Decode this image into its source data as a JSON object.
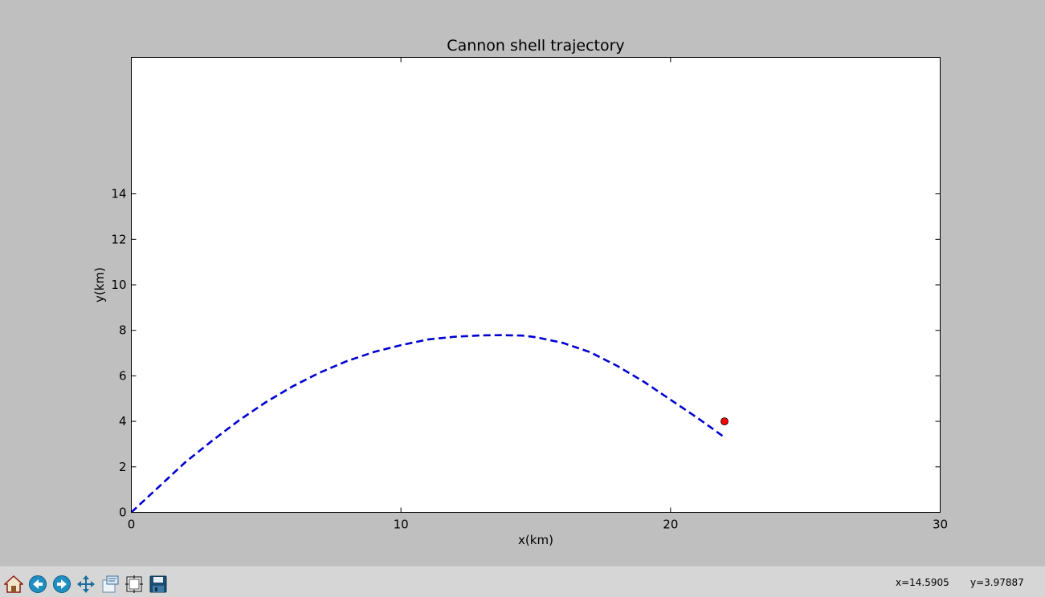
{
  "chart_data": {
    "type": "line",
    "title": "Cannon shell trajectory",
    "xlabel": "x(km)",
    "ylabel": "y(km)",
    "xlim": [
      0,
      30
    ],
    "ylim": [
      0,
      20
    ],
    "xticks": [
      0,
      10,
      20,
      30
    ],
    "yticks": [
      0,
      2,
      4,
      6,
      8,
      10,
      12,
      14
    ],
    "grid": false,
    "series": [
      {
        "style": "dashed",
        "color": "#0000d0",
        "x": [
          0,
          1,
          2,
          3,
          4,
          5,
          6,
          7,
          8,
          9,
          10,
          11,
          12,
          13,
          13.7,
          14.5,
          15,
          16,
          17,
          18,
          19,
          20,
          21,
          22
        ],
        "y": [
          0,
          1.1,
          2.2,
          3.15,
          4.05,
          4.85,
          5.55,
          6.15,
          6.65,
          7.05,
          7.35,
          7.6,
          7.72,
          7.78,
          7.79,
          7.77,
          7.7,
          7.45,
          7.05,
          6.45,
          5.75,
          4.95,
          4.15,
          3.3
        ]
      },
      {
        "style": "marker",
        "color": "#ff0000",
        "x": [
          22
        ],
        "y": [
          4
        ]
      }
    ]
  },
  "toolbar": {
    "buttons": [
      {
        "name": "home-button",
        "icon": "home-icon"
      },
      {
        "name": "back-button",
        "icon": "back-arrow-icon"
      },
      {
        "name": "forward-button",
        "icon": "forward-arrow-icon"
      },
      {
        "name": "pan-button",
        "icon": "pan-move-icon"
      },
      {
        "name": "zoom-button",
        "icon": "zoom-rect-icon"
      },
      {
        "name": "subplots-button",
        "icon": "subplots-config-icon"
      },
      {
        "name": "save-button",
        "icon": "save-disk-icon"
      }
    ]
  },
  "status": {
    "x_readout": "x=14.5905",
    "y_readout": "y=3.97887"
  }
}
